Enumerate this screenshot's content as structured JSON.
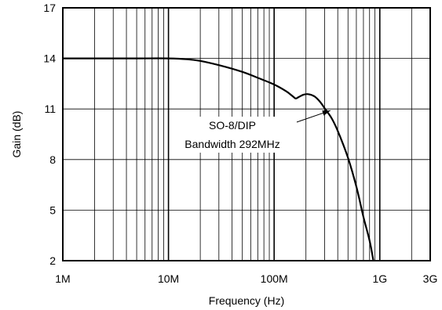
{
  "chart_data": {
    "type": "line",
    "title": "",
    "xlabel": "Frequency (Hz)",
    "ylabel": "Gain (dB)",
    "x_scale": "log",
    "xlim": [
      1000000,
      3000000000
    ],
    "ylim": [
      2,
      17
    ],
    "x_tick_values": [
      1000000,
      10000000,
      100000000,
      1000000000,
      3000000000
    ],
    "x_tick_labels": [
      "1M",
      "10M",
      "100M",
      "1G",
      "3G"
    ],
    "y_ticks": [
      2,
      5,
      8,
      11,
      14,
      17
    ],
    "grid": true,
    "series": [
      {
        "x": [
          1000000,
          2000000,
          5000000,
          10000000,
          15000000,
          20000000,
          30000000,
          50000000,
          70000000,
          100000000,
          130000000,
          150000000,
          160000000,
          170000000,
          190000000,
          210000000,
          240000000,
          270000000,
          300000000,
          350000000,
          400000000,
          500000000,
          600000000,
          700000000,
          800000000,
          870000000
        ],
        "y": [
          14,
          14,
          14,
          14,
          13.95,
          13.85,
          13.6,
          13.2,
          12.85,
          12.45,
          12.05,
          11.75,
          11.62,
          11.7,
          11.85,
          11.88,
          11.75,
          11.45,
          11.05,
          10.45,
          9.7,
          8.1,
          6.4,
          4.6,
          3.2,
          2
        ]
      }
    ],
    "annotations": [
      {
        "lines": [
          "SO-8/DIP",
          "Bandwidth 292MHz"
        ],
        "arrow_to_x": 292000000,
        "arrow_to_y": 11
      }
    ]
  }
}
